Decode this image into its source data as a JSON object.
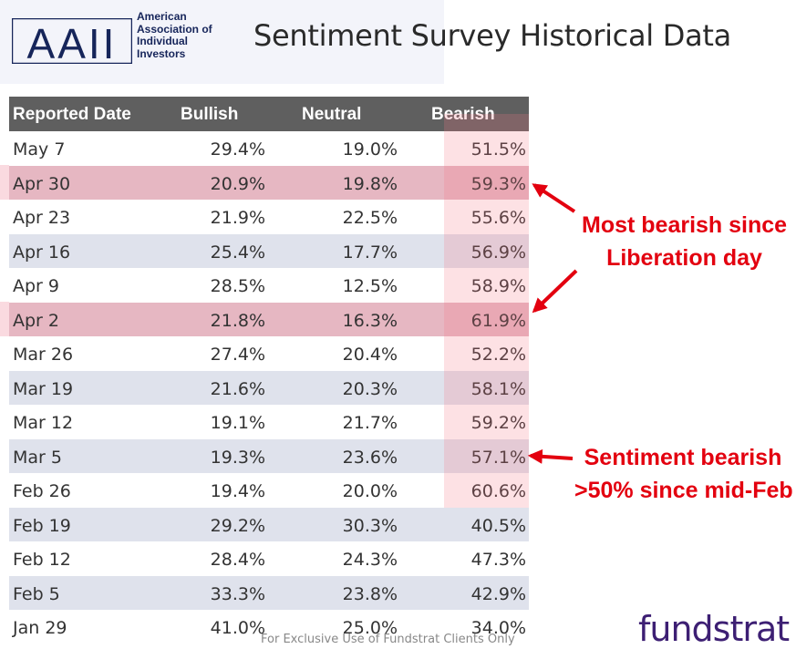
{
  "logo": {
    "letters": "AAII",
    "lines": [
      "American",
      "Association of",
      "Individual",
      "Investors"
    ]
  },
  "title": "Sentiment Survey Historical Data",
  "chart_data": {
    "type": "table",
    "columns": [
      "Reported Date",
      "Bullish",
      "Neutral",
      "Bearish"
    ],
    "rows": [
      {
        "date": "May 7",
        "bullish": "29.4%",
        "neutral": "19.0%",
        "bearish": "51.5%"
      },
      {
        "date": "Apr 30",
        "bullish": "20.9%",
        "neutral": "19.8%",
        "bearish": "59.3%"
      },
      {
        "date": "Apr 23",
        "bullish": "21.9%",
        "neutral": "22.5%",
        "bearish": "55.6%"
      },
      {
        "date": "Apr 16",
        "bullish": "25.4%",
        "neutral": "17.7%",
        "bearish": "56.9%"
      },
      {
        "date": "Apr 9",
        "bullish": "28.5%",
        "neutral": "12.5%",
        "bearish": "58.9%"
      },
      {
        "date": "Apr 2",
        "bullish": "21.8%",
        "neutral": "16.3%",
        "bearish": "61.9%"
      },
      {
        "date": "Mar 26",
        "bullish": "27.4%",
        "neutral": "20.4%",
        "bearish": "52.2%"
      },
      {
        "date": "Mar 19",
        "bullish": "21.6%",
        "neutral": "20.3%",
        "bearish": "58.1%"
      },
      {
        "date": "Mar 12",
        "bullish": "19.1%",
        "neutral": "21.7%",
        "bearish": "59.2%"
      },
      {
        "date": "Mar 5",
        "bullish": "19.3%",
        "neutral": "23.6%",
        "bearish": "57.1%"
      },
      {
        "date": "Feb 26",
        "bullish": "19.4%",
        "neutral": "20.0%",
        "bearish": "60.6%"
      },
      {
        "date": "Feb 19",
        "bullish": "29.2%",
        "neutral": "30.3%",
        "bearish": "40.5%"
      },
      {
        "date": "Feb 12",
        "bullish": "28.4%",
        "neutral": "24.3%",
        "bearish": "47.3%"
      },
      {
        "date": "Feb 5",
        "bullish": "33.3%",
        "neutral": "23.8%",
        "bearish": "42.9%"
      },
      {
        "date": "Jan 29",
        "bullish": "41.0%",
        "neutral": "25.0%",
        "bearish": "34.0%"
      }
    ],
    "highlighted_rows": [
      "Apr 30",
      "Apr 2"
    ],
    "highlighted_column": "Bearish"
  },
  "annotations": {
    "liberation": [
      "Most bearish since",
      "Liberation day"
    ],
    "sentiment": [
      "Sentiment bearish",
      ">50% since mid-Feb"
    ]
  },
  "colors": {
    "header_bg": "#5f5f5f",
    "row_shade": "#dfe2ec",
    "highlight": "#e6b7c2",
    "annotation": "#e3000f",
    "brand": "#3d1f73"
  },
  "footer": "For Exclusive Use of Fundstrat Clients Only",
  "brand": "fundstrat"
}
